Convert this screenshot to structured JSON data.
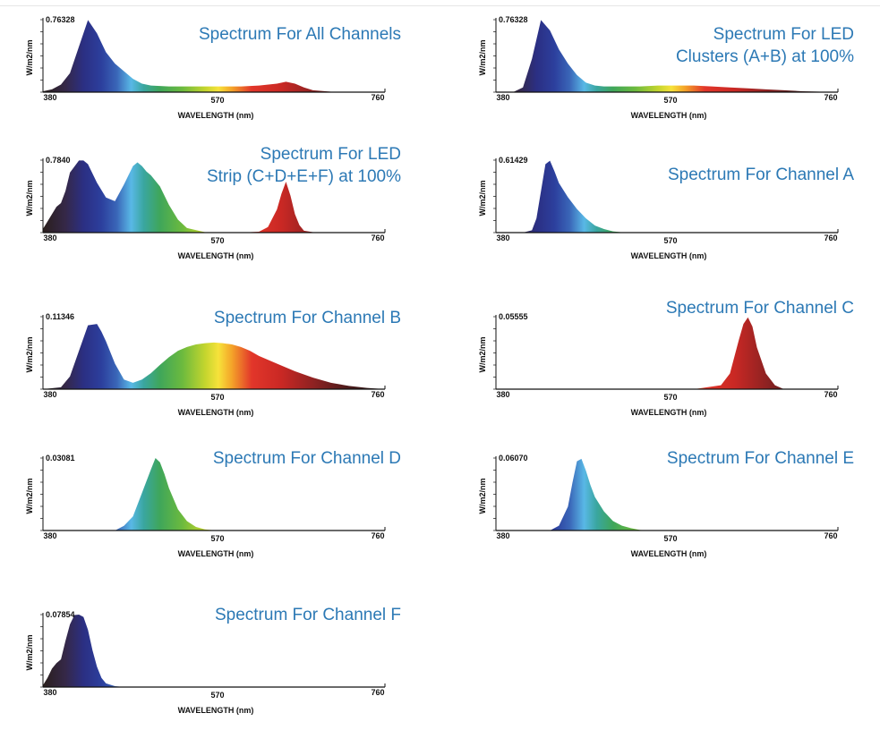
{
  "colors": {
    "title": "#2c79b5",
    "axis": "#111111",
    "spectrum_stops": [
      {
        "nm": 380,
        "color": "#2a1f1c"
      },
      {
        "nm": 405,
        "color": "#352848"
      },
      {
        "nm": 425,
        "color": "#2b2f83"
      },
      {
        "nm": 445,
        "color": "#2c3f9d"
      },
      {
        "nm": 462,
        "color": "#3a66b8"
      },
      {
        "nm": 478,
        "color": "#59b8e6"
      },
      {
        "nm": 492,
        "color": "#3aa6a0"
      },
      {
        "nm": 510,
        "color": "#3fa65a"
      },
      {
        "nm": 535,
        "color": "#6cba3e"
      },
      {
        "nm": 560,
        "color": "#c3d52e"
      },
      {
        "nm": 575,
        "color": "#f7e23a"
      },
      {
        "nm": 590,
        "color": "#f4a329"
      },
      {
        "nm": 612,
        "color": "#e2362a"
      },
      {
        "nm": 645,
        "color": "#c92824"
      },
      {
        "nm": 680,
        "color": "#8f2222"
      },
      {
        "nm": 720,
        "color": "#4a1a1a"
      },
      {
        "nm": 760,
        "color": "#2a1616"
      }
    ]
  },
  "chart_data": [
    {
      "id": "all-channels",
      "type": "area",
      "title_lines": [
        "Spectrum For All Channels"
      ],
      "ylabel": "W/m2/nm",
      "xlabel": "WAVELENGTH (nm)",
      "x_ticks": [
        "380",
        "570",
        "760"
      ],
      "xlim": [
        380,
        760
      ],
      "ymax_label": "0.76328",
      "ylim": [
        0,
        0.76328
      ],
      "x": [
        380,
        390,
        400,
        410,
        420,
        430,
        440,
        445,
        450,
        460,
        470,
        480,
        490,
        500,
        520,
        540,
        560,
        580,
        600,
        620,
        640,
        650,
        660,
        670,
        680,
        700,
        720,
        740,
        760
      ],
      "y": [
        0.01,
        0.03,
        0.08,
        0.2,
        0.48,
        0.76,
        0.62,
        0.52,
        0.42,
        0.3,
        0.22,
        0.14,
        0.09,
        0.07,
        0.06,
        0.06,
        0.06,
        0.06,
        0.06,
        0.07,
        0.09,
        0.11,
        0.09,
        0.05,
        0.02,
        0.005,
        0.002,
        0.001,
        0
      ]
    },
    {
      "id": "clusters-ab",
      "type": "area",
      "title_lines": [
        "Spectrum For LED",
        "Clusters (A+B) at 100%"
      ],
      "ylabel": "W/m2/nm",
      "xlabel": "WAVELENGTH (nm)",
      "x_ticks": [
        "380",
        "570",
        "760"
      ],
      "xlim": [
        380,
        760
      ],
      "ymax_label": "0.76328",
      "ylim": [
        0,
        0.76328
      ],
      "x": [
        380,
        400,
        410,
        420,
        430,
        440,
        445,
        450,
        460,
        470,
        480,
        490,
        500,
        520,
        540,
        560,
        580,
        600,
        620,
        640,
        660,
        680,
        700,
        720,
        740,
        760
      ],
      "y": [
        0,
        0.005,
        0.05,
        0.35,
        0.76,
        0.65,
        0.55,
        0.45,
        0.3,
        0.18,
        0.1,
        0.07,
        0.06,
        0.06,
        0.06,
        0.07,
        0.07,
        0.07,
        0.06,
        0.05,
        0.04,
        0.03,
        0.02,
        0.01,
        0.005,
        0
      ]
    },
    {
      "id": "strip-cdef",
      "type": "area",
      "title_lines": [
        "Spectrum For LED",
        "Strip (C+D+E+F) at 100%"
      ],
      "ylabel": "W/m2/nm",
      "xlabel": "WAVELENGTH (nm)",
      "x_ticks": [
        "380",
        "570",
        "760"
      ],
      "xlim": [
        380,
        760
      ],
      "ymax_label": "0.7840",
      "ylim": [
        0,
        0.784
      ],
      "x": [
        380,
        385,
        390,
        395,
        400,
        405,
        410,
        420,
        425,
        430,
        440,
        450,
        460,
        470,
        480,
        485,
        490,
        495,
        500,
        510,
        520,
        530,
        540,
        560,
        580,
        600,
        620,
        630,
        640,
        645,
        650,
        655,
        660,
        665,
        670,
        680,
        700,
        720,
        740,
        760
      ],
      "y": [
        0.04,
        0.12,
        0.2,
        0.28,
        0.32,
        0.45,
        0.65,
        0.78,
        0.78,
        0.74,
        0.54,
        0.38,
        0.34,
        0.52,
        0.72,
        0.76,
        0.72,
        0.66,
        0.62,
        0.5,
        0.3,
        0.14,
        0.05,
        0.005,
        0,
        0,
        0.01,
        0.06,
        0.25,
        0.42,
        0.55,
        0.4,
        0.2,
        0.08,
        0.02,
        0.005,
        0,
        0,
        0,
        0
      ]
    },
    {
      "id": "channel-a",
      "type": "area",
      "title_lines": [
        "Spectrum For Channel A"
      ],
      "ylabel": "W/m2/nm",
      "xlabel": "WAVELENGTH (nm)",
      "x_ticks": [
        "380",
        "570",
        "760"
      ],
      "xlim": [
        380,
        760
      ],
      "ymax_label": "0.61429",
      "ylim": [
        0,
        0.61429
      ],
      "x": [
        380,
        410,
        420,
        425,
        430,
        435,
        440,
        445,
        450,
        460,
        470,
        480,
        490,
        500,
        510,
        520,
        540,
        760
      ],
      "y": [
        0,
        0,
        0.02,
        0.12,
        0.35,
        0.58,
        0.61,
        0.52,
        0.42,
        0.3,
        0.2,
        0.12,
        0.06,
        0.03,
        0.01,
        0.003,
        0,
        0
      ]
    },
    {
      "id": "channel-b",
      "type": "area",
      "title_lines": [
        "Spectrum For Channel B"
      ],
      "ylabel": "W/m2/nm",
      "xlabel": "WAVELENGTH (nm)",
      "x_ticks": [
        "380",
        "570",
        "760"
      ],
      "xlim": [
        380,
        760
      ],
      "ymax_label": "0.11346",
      "ylim": [
        0,
        0.11346
      ],
      "x": [
        380,
        400,
        410,
        420,
        430,
        440,
        445,
        450,
        460,
        470,
        480,
        490,
        500,
        510,
        520,
        530,
        540,
        550,
        560,
        570,
        580,
        590,
        600,
        610,
        620,
        640,
        660,
        680,
        700,
        720,
        740,
        760
      ],
      "y": [
        0,
        0.003,
        0.02,
        0.06,
        0.1,
        0.102,
        0.09,
        0.075,
        0.04,
        0.015,
        0.01,
        0.015,
        0.025,
        0.038,
        0.05,
        0.06,
        0.066,
        0.07,
        0.072,
        0.073,
        0.072,
        0.07,
        0.066,
        0.06,
        0.052,
        0.04,
        0.028,
        0.018,
        0.01,
        0.005,
        0.002,
        0
      ]
    },
    {
      "id": "channel-c",
      "type": "area",
      "title_lines": [
        "Spectrum For Channel C"
      ],
      "ylabel": "W/m2/nm",
      "xlabel": "WAVELENGTH (nm)",
      "x_ticks": [
        "380",
        "570",
        "760"
      ],
      "xlim": [
        380,
        760
      ],
      "ymax_label": "0.05555",
      "ylim": [
        0,
        0.05555
      ],
      "x": [
        380,
        600,
        630,
        640,
        650,
        655,
        660,
        665,
        670,
        680,
        690,
        700,
        760
      ],
      "y": [
        0,
        0,
        0.003,
        0.012,
        0.038,
        0.05,
        0.055,
        0.048,
        0.032,
        0.012,
        0.003,
        0,
        0
      ]
    },
    {
      "id": "channel-d",
      "type": "area",
      "title_lines": [
        "Spectrum For Channel D"
      ],
      "ylabel": "W/m2/nm",
      "xlabel": "WAVELENGTH (nm)",
      "x_ticks": [
        "380",
        "570",
        "760"
      ],
      "xlim": [
        380,
        760
      ],
      "ymax_label": "0.03081",
      "ylim": [
        0,
        0.03081
      ],
      "x": [
        380,
        460,
        470,
        480,
        490,
        500,
        505,
        510,
        515,
        520,
        530,
        540,
        550,
        560,
        570,
        580,
        760
      ],
      "y": [
        0,
        0,
        0.002,
        0.006,
        0.016,
        0.026,
        0.0308,
        0.029,
        0.024,
        0.018,
        0.009,
        0.004,
        0.0015,
        0.0005,
        0.0001,
        0,
        0
      ]
    },
    {
      "id": "channel-e",
      "type": "area",
      "title_lines": [
        "Spectrum For Channel E"
      ],
      "ylabel": "W/m2/nm",
      "xlabel": "WAVELENGTH (nm)",
      "x_ticks": [
        "380",
        "570",
        "760"
      ],
      "xlim": [
        380,
        760
      ],
      "ymax_label": "0.06070",
      "ylim": [
        0,
        0.0607
      ],
      "x": [
        380,
        440,
        450,
        460,
        465,
        470,
        475,
        480,
        485,
        490,
        500,
        510,
        520,
        530,
        540,
        550,
        760
      ],
      "y": [
        0,
        0,
        0.004,
        0.02,
        0.04,
        0.058,
        0.06,
        0.05,
        0.038,
        0.028,
        0.016,
        0.008,
        0.004,
        0.002,
        0.0005,
        0,
        0
      ]
    },
    {
      "id": "channel-f",
      "type": "area",
      "title_lines": [
        "Spectrum For Channel F"
      ],
      "ylabel": "W/m2/nm",
      "xlabel": "WAVELENGTH (nm)",
      "x_ticks": [
        "380",
        "570",
        "760"
      ],
      "xlim": [
        380,
        760
      ],
      "ymax_label": "0.07854",
      "ylim": [
        0,
        0.07854
      ],
      "x": [
        380,
        385,
        390,
        395,
        400,
        405,
        410,
        415,
        420,
        425,
        430,
        435,
        440,
        445,
        450,
        460,
        470,
        480,
        760
      ],
      "y": [
        0.002,
        0.01,
        0.02,
        0.026,
        0.03,
        0.05,
        0.068,
        0.078,
        0.0785,
        0.076,
        0.062,
        0.04,
        0.022,
        0.01,
        0.004,
        0.001,
        0,
        0,
        0
      ]
    }
  ]
}
